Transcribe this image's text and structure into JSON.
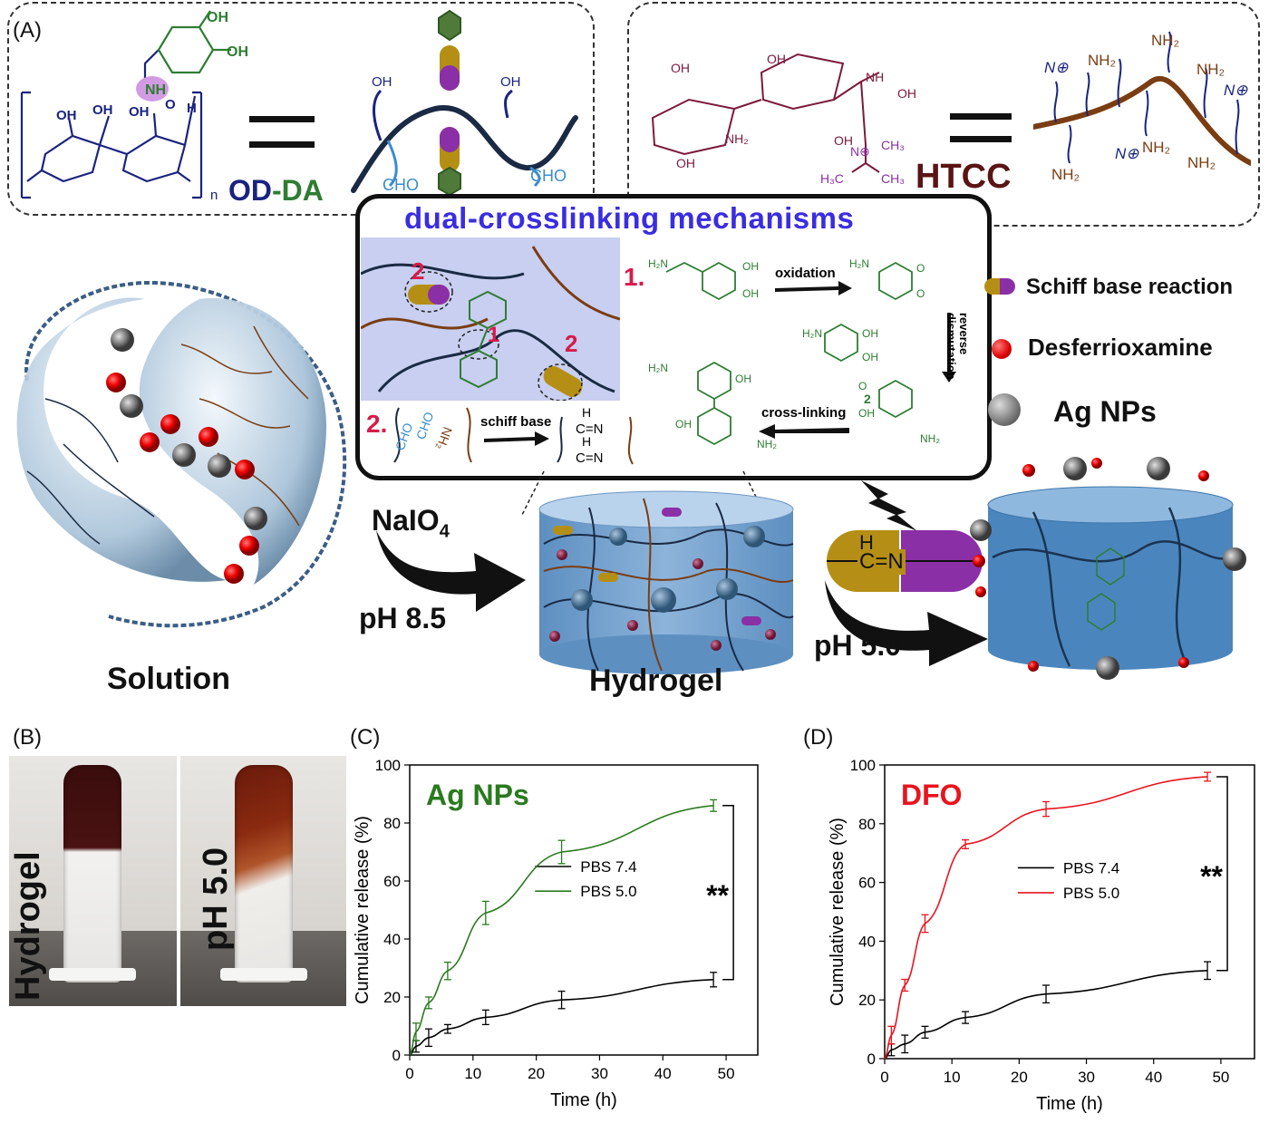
{
  "panels": {
    "A": "(A)",
    "B": "(B)",
    "C": "(C)",
    "D": "(D)"
  },
  "panelA": {
    "od_da_label_od": "OD",
    "od_da_label_sep": "-",
    "od_da_label_da": "DA",
    "htcc_label": "HTCC",
    "mechanism_title": "dual-crosslinking mechanisms",
    "step1": "1.",
    "step2": "2.",
    "oxidation": "oxidation",
    "reverse": "reverse",
    "dismutation": "dismutation",
    "crosslinking": "cross-linking",
    "schiff_base": "schiff base",
    "legend": {
      "schiff": "Schiff base reaction",
      "dfo": "Desferrioxamine",
      "ag": "Ag NPs"
    },
    "naio4": "NaIO",
    "naio4_sub": "4",
    "ph85": "pH 8.5",
    "ph50": "pH 5.0",
    "solution": "Solution",
    "hydrogel": "Hydrogel",
    "chem_labels": {
      "oh": "OH",
      "nh": "NH",
      "nh2": "NH₂",
      "h": "H",
      "n": "N",
      "cho": "CHO",
      "o": "O",
      "n_plus": "N⊕",
      "h3c": "H₃C",
      "ch3": "CH₃",
      "n_label": "n",
      "two": "2",
      "one": "1",
      "c_eq_n": "C=N",
      "h2n": "H₂N"
    }
  },
  "panelB": {
    "left": "Hydrogel",
    "right": "pH 5.0"
  },
  "chart_data": [
    {
      "type": "line",
      "panel": "C",
      "annotation": "Ag NPs",
      "significance": "**",
      "xlabel": "Time (h)",
      "ylabel": "Cumulative release (%)",
      "xlim": [
        0,
        55
      ],
      "ylim": [
        0,
        100
      ],
      "xticks": [
        0,
        10,
        20,
        30,
        40,
        50
      ],
      "yticks": [
        0,
        20,
        40,
        60,
        80,
        100
      ],
      "legend_position": "center",
      "x": [
        0,
        1,
        3,
        6,
        12,
        24,
        48
      ],
      "series": [
        {
          "name": "PBS 7.4",
          "color": "#000000",
          "values": [
            0,
            3,
            6,
            9,
            13,
            19,
            26
          ],
          "errors": [
            0,
            2,
            3,
            1.5,
            2.5,
            3,
            2.5
          ]
        },
        {
          "name": "PBS 5.0",
          "color": "#2a7a1e",
          "values": [
            0,
            8,
            18,
            29,
            49,
            70,
            86
          ],
          "errors": [
            0,
            3,
            2,
            3,
            4,
            4,
            2
          ]
        }
      ]
    },
    {
      "type": "line",
      "panel": "D",
      "annotation": "DFO",
      "significance": "**",
      "xlabel": "Time (h)",
      "ylabel": "Cumulative release (%)",
      "xlim": [
        0,
        55
      ],
      "ylim": [
        0,
        100
      ],
      "xticks": [
        0,
        10,
        20,
        30,
        40,
        50
      ],
      "yticks": [
        0,
        20,
        40,
        60,
        80,
        100
      ],
      "legend_position": "center",
      "x": [
        0,
        1,
        3,
        6,
        12,
        24,
        48
      ],
      "series": [
        {
          "name": "PBS 7.4",
          "color": "#000000",
          "values": [
            0,
            3,
            5,
            9,
            14,
            22,
            30
          ],
          "errors": [
            0,
            2,
            3,
            2,
            2,
            3,
            3
          ]
        },
        {
          "name": "PBS 5.0",
          "color": "#e8141e",
          "values": [
            0,
            8,
            25,
            46,
            73,
            85,
            96
          ],
          "errors": [
            0,
            3,
            2,
            3,
            1.5,
            2.5,
            1.5
          ]
        }
      ]
    }
  ]
}
